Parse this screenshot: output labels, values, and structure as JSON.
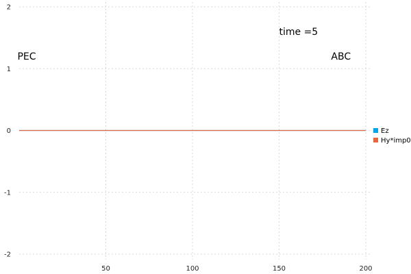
{
  "chart_data": {
    "type": "line",
    "title": "",
    "xlabel": "",
    "ylabel": "",
    "xlim": [
      0,
      200
    ],
    "ylim": [
      -2,
      2
    ],
    "x_ticks": [
      50,
      100,
      150,
      200
    ],
    "y_ticks": [
      -2,
      -1,
      0,
      1,
      2
    ],
    "grid": true,
    "legend_position": "right",
    "series": [
      {
        "name": "Ez",
        "color": "#00a6ed",
        "x": [
          0,
          200
        ],
        "y": [
          0,
          0
        ]
      },
      {
        "name": "Hy*imp0",
        "color": "#e9663d",
        "x": [
          0,
          200
        ],
        "y": [
          0,
          0
        ]
      }
    ],
    "annotations": [
      {
        "text": "time =5",
        "x": 150,
        "y": 1.6
      },
      {
        "text": "PEC",
        "x": -1,
        "y": 1.2
      },
      {
        "text": "ABC",
        "x": 180,
        "y": 1.2
      }
    ]
  }
}
